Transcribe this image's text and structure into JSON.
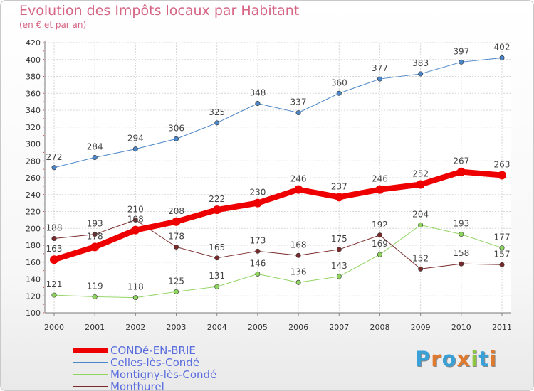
{
  "header": {
    "title": "Evolution des Impôts locaux par Habitant",
    "subtitle": "(en € et par an)"
  },
  "brand": {
    "text": "Proxiti",
    "colors": [
      "#3aa0d8",
      "#e07a2e",
      "#3aa0d8",
      "#e07a2e",
      "#8dc63f",
      "#3aa0d8",
      "#e07a2e"
    ]
  },
  "chart_data": {
    "type": "line",
    "title": "Evolution des Impôts locaux par Habitant",
    "subtitle": "(en € et par an)",
    "xlabel": "",
    "ylabel": "",
    "x": [
      "2000",
      "2001",
      "2002",
      "2003",
      "2004",
      "2005",
      "2006",
      "2007",
      "2008",
      "2009",
      "2010",
      "2011"
    ],
    "ylim": [
      100,
      420
    ],
    "yticks": [
      100,
      120,
      140,
      160,
      180,
      200,
      220,
      240,
      260,
      280,
      300,
      320,
      340,
      360,
      380,
      400,
      420
    ],
    "grid": true,
    "legend_position": "bottom-left",
    "series": [
      {
        "name": "Celles-lès-Condé",
        "color": "#4a86c8",
        "width": 1,
        "values": [
          272,
          284,
          294,
          306,
          325,
          348,
          337,
          360,
          377,
          383,
          397,
          402
        ]
      },
      {
        "name": "Montigny-lès-Condé",
        "color": "#8fd45e",
        "width": 1,
        "values": [
          121,
          119,
          118,
          125,
          131,
          146,
          136,
          143,
          169,
          204,
          193,
          177
        ]
      },
      {
        "name": "Monthurel",
        "color": "#7a2a2a",
        "width": 1,
        "values": [
          188,
          193,
          210,
          178,
          165,
          173,
          168,
          175,
          192,
          152,
          158,
          157
        ]
      },
      {
        "name": "CONDé-EN-BRIE",
        "color": "#ee0000",
        "width": 8,
        "values": [
          163,
          178,
          198,
          208,
          222,
          230,
          246,
          237,
          246,
          252,
          267,
          263
        ]
      }
    ],
    "legend_order": [
      "CONDé-EN-BRIE",
      "Celles-lès-Condé",
      "Montigny-lès-Condé",
      "Monthurel"
    ]
  }
}
